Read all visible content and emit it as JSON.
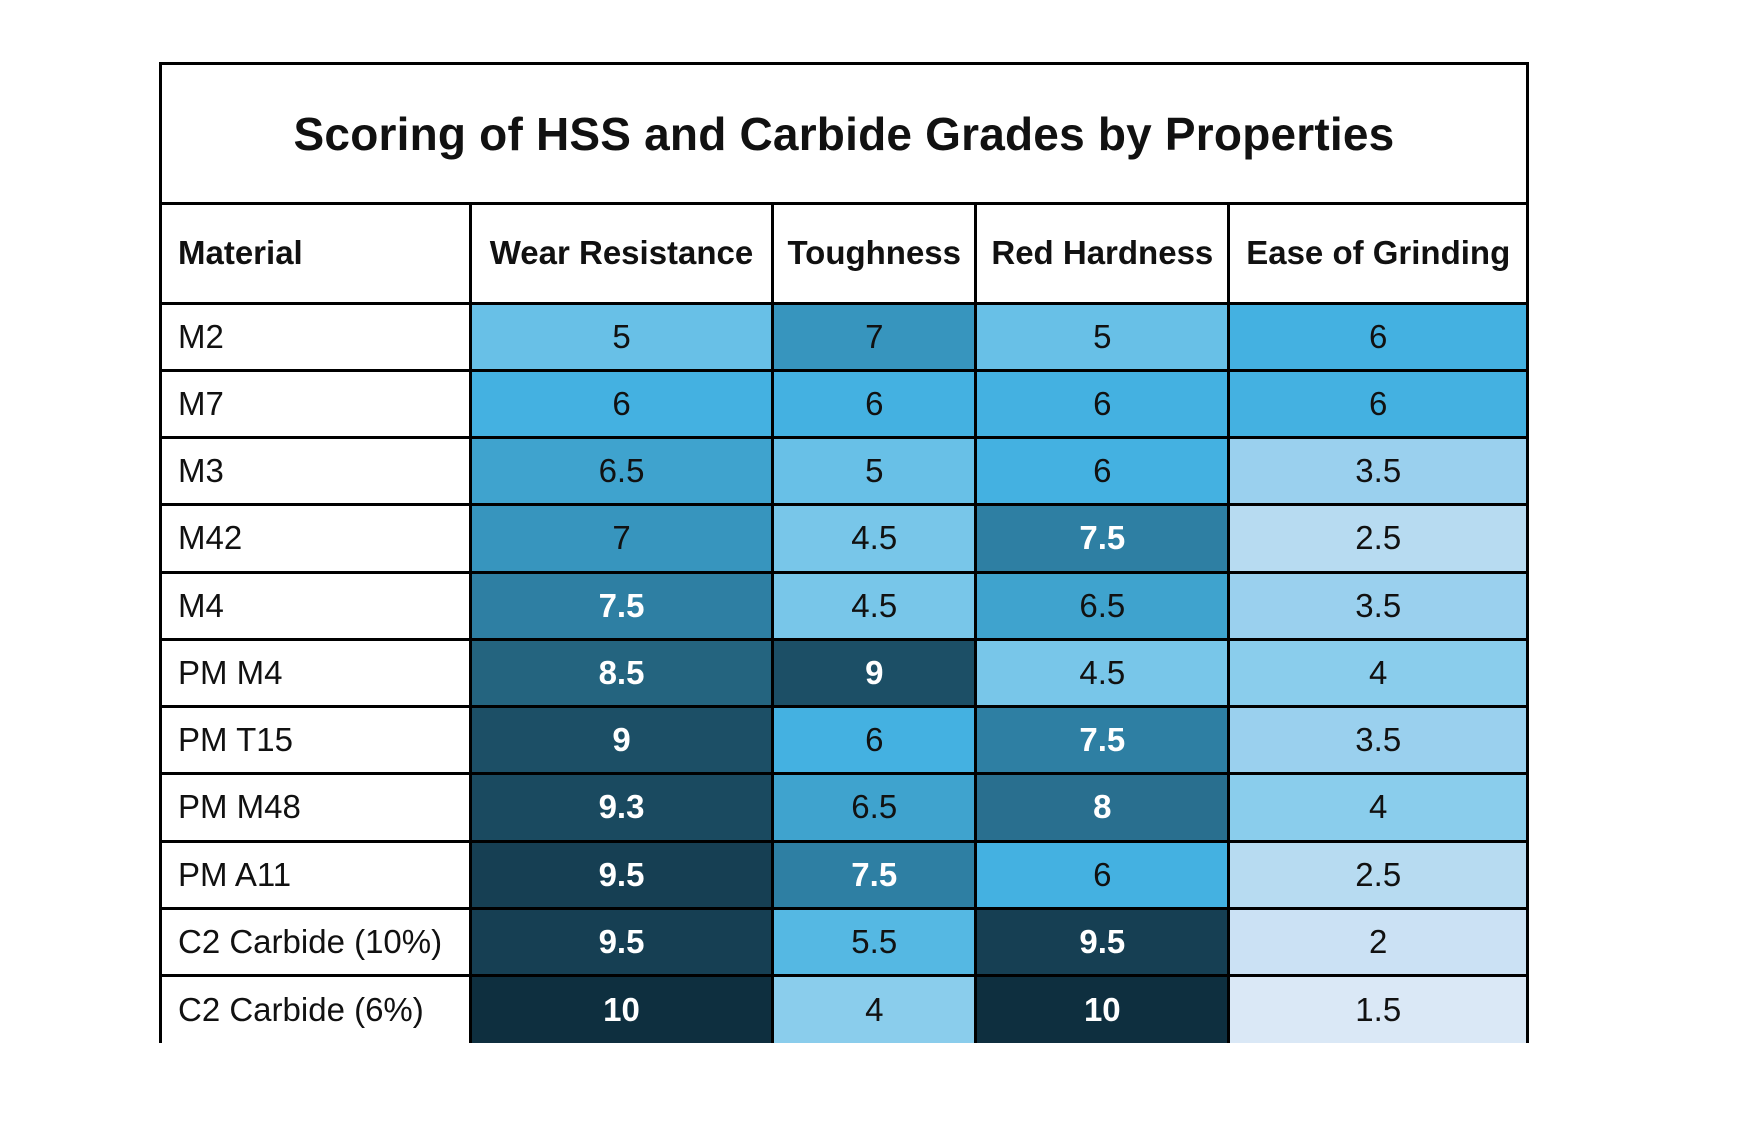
{
  "chart_data": {
    "type": "table",
    "title": "Scoring of HSS and Carbide Grades by Properties",
    "columns": [
      "Material",
      "Wear Resistance",
      "Toughness",
      "Red Hardness",
      "Ease of Grinding"
    ],
    "rows": [
      {
        "material": "M2",
        "values": [
          "5",
          "7",
          "5",
          "6"
        ]
      },
      {
        "material": "M7",
        "values": [
          "6",
          "6",
          "6",
          "6"
        ]
      },
      {
        "material": "M3",
        "values": [
          "6.5",
          "5",
          "6",
          "3.5"
        ]
      },
      {
        "material": "M42",
        "values": [
          "7",
          "4.5",
          "7.5",
          "2.5"
        ]
      },
      {
        "material": "M4",
        "values": [
          "7.5",
          "4.5",
          "6.5",
          "3.5"
        ]
      },
      {
        "material": "PM M4",
        "values": [
          "8.5",
          "9",
          "4.5",
          "4"
        ]
      },
      {
        "material": "PM T15",
        "values": [
          "9",
          "6",
          "7.5",
          "3.5"
        ]
      },
      {
        "material": "PM M48",
        "values": [
          "9.3",
          "6.5",
          "8",
          "4"
        ]
      },
      {
        "material": "PM A11",
        "values": [
          "9.5",
          "7.5",
          "6",
          "2.5"
        ]
      },
      {
        "material": "C2 Carbide (10%)",
        "values": [
          "9.5",
          "5.5",
          "9.5",
          "2"
        ]
      },
      {
        "material": "C2 Carbide (6%)",
        "values": [
          "10",
          "4",
          "10",
          "1.5"
        ]
      }
    ],
    "color_scale": {
      "1.5": "#dae8f6",
      "2": "#cbe1f4",
      "2.5": "#b7dbf1",
      "3.5": "#9ad0ee",
      "4": "#8acdec",
      "4.5": "#78c6e9",
      "5": "#68c0e7",
      "5.5": "#55b8e3",
      "6": "#44b1e1",
      "6.5": "#3fa3ce",
      "7": "#3795be",
      "7.5": "#2e7fa3",
      "8": "#296f8f",
      "8.5": "#24647f",
      "9": "#1c4f66",
      "9.3": "#1a4a60",
      "9.5": "#163f53",
      "10": "#0e2f3f"
    },
    "white_text_threshold": 7.5
  }
}
